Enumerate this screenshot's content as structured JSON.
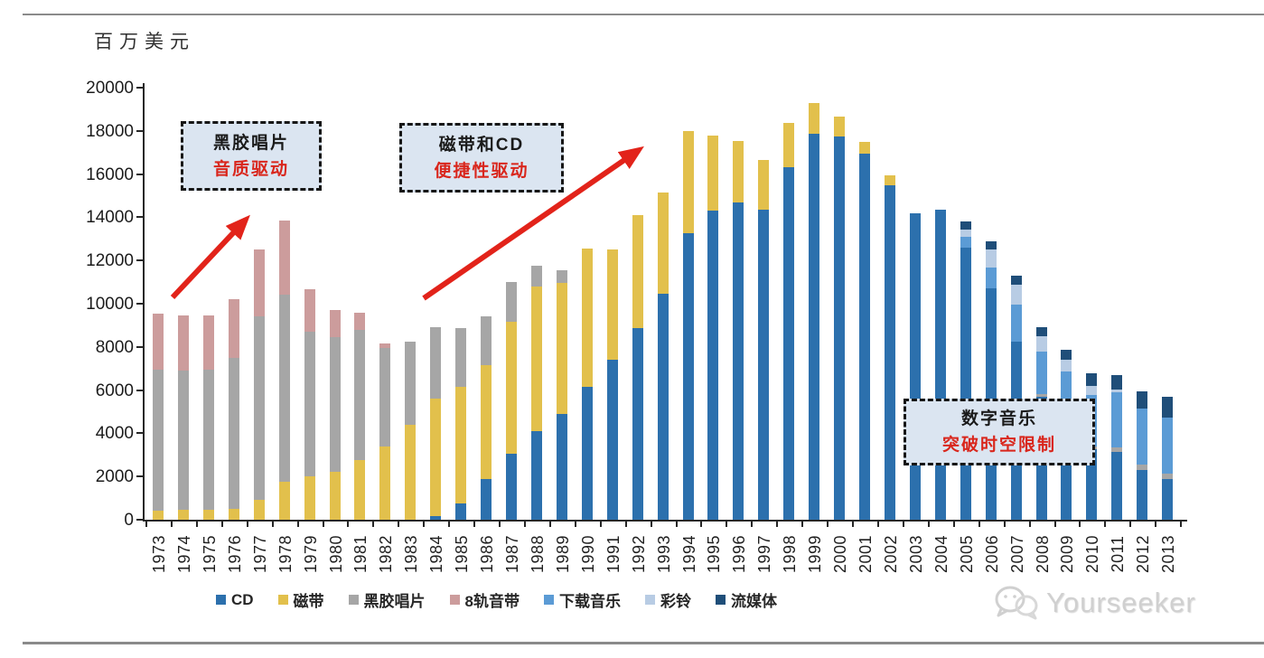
{
  "axis_title": "百万美元",
  "y_axis": {
    "min": 0,
    "max": 20000,
    "step": 2000
  },
  "chart_data": {
    "type": "bar",
    "subtype": "stacked",
    "unit": "百万美元",
    "ylim": [
      0,
      20000
    ],
    "grid": false,
    "legend_position": "bottom",
    "x": [
      "1973",
      "1974",
      "1975",
      "1976",
      "1977",
      "1978",
      "1979",
      "1980",
      "1981",
      "1982",
      "1983",
      "1984",
      "1985",
      "1986",
      "1987",
      "1988",
      "1989",
      "1990",
      "1991",
      "1992",
      "1993",
      "1994",
      "1995",
      "1996",
      "1997",
      "1998",
      "1999",
      "2000",
      "2001",
      "2002",
      "2003",
      "2004",
      "2005",
      "2006",
      "2007",
      "2008",
      "2009",
      "2010",
      "2011",
      "2012",
      "2013"
    ],
    "series": [
      {
        "name": "CD",
        "color": "#2c70ad",
        "values": [
          0,
          0,
          0,
          0,
          0,
          0,
          0,
          0,
          0,
          0,
          0,
          150,
          750,
          1870,
          3050,
          4100,
          4900,
          6150,
          7400,
          8850,
          10450,
          13250,
          14300,
          14700,
          14350,
          16300,
          17850,
          17750,
          16950,
          15500,
          14200,
          14350,
          12600,
          10700,
          8250,
          5700,
          4850,
          3250,
          3150,
          2300,
          1900
        ]
      },
      {
        "name": "磁带",
        "color": "#e2c04c",
        "values": [
          400,
          450,
          450,
          500,
          900,
          1750,
          2000,
          2200,
          2750,
          3400,
          4400,
          5450,
          5400,
          5300,
          6100,
          6700,
          6050,
          6400,
          5100,
          5250,
          4700,
          4750,
          3500,
          2850,
          2300,
          2050,
          1450,
          900,
          550,
          450,
          0,
          0,
          0,
          0,
          0,
          0,
          0,
          0,
          0,
          0,
          0
        ]
      },
      {
        "name": "黑胶唱片",
        "color": "#a6a6a6",
        "values": [
          6550,
          6450,
          6500,
          7000,
          8500,
          8650,
          6700,
          6250,
          6050,
          4550,
          3850,
          3300,
          2700,
          2250,
          1850,
          950,
          600,
          0,
          0,
          0,
          0,
          0,
          0,
          0,
          0,
          0,
          0,
          0,
          0,
          0,
          0,
          0,
          0,
          0,
          0,
          100,
          100,
          130,
          180,
          250,
          250
        ]
      },
      {
        "name": "8轨音带",
        "color": "#cc9c9c",
        "values": [
          2600,
          2550,
          2500,
          2700,
          3100,
          3450,
          1950,
          1250,
          800,
          200,
          0,
          0,
          0,
          0,
          0,
          0,
          0,
          0,
          0,
          0,
          0,
          0,
          0,
          0,
          0,
          0,
          0,
          0,
          0,
          0,
          0,
          0,
          0,
          0,
          0,
          0,
          0,
          0,
          0,
          0,
          0
        ]
      },
      {
        "name": "下载音乐",
        "color": "#5b9bd5",
        "values": [
          0,
          0,
          0,
          0,
          0,
          0,
          0,
          0,
          0,
          0,
          0,
          0,
          0,
          0,
          0,
          0,
          0,
          0,
          0,
          0,
          0,
          0,
          0,
          0,
          0,
          0,
          0,
          0,
          0,
          0,
          0,
          0,
          500,
          980,
          1700,
          2000,
          1900,
          2400,
          2550,
          2600,
          2580
        ]
      },
      {
        "name": "彩铃",
        "color": "#b8cce4",
        "values": [
          0,
          0,
          0,
          0,
          0,
          0,
          0,
          0,
          0,
          0,
          0,
          0,
          0,
          0,
          0,
          0,
          0,
          0,
          0,
          0,
          0,
          0,
          0,
          0,
          0,
          0,
          0,
          0,
          0,
          0,
          0,
          0,
          350,
          810,
          930,
          700,
          550,
          400,
          130,
          0,
          0
        ]
      },
      {
        "name": "流媒体",
        "color": "#1f4e79",
        "values": [
          0,
          0,
          0,
          0,
          0,
          0,
          0,
          0,
          0,
          0,
          0,
          0,
          0,
          0,
          0,
          0,
          0,
          0,
          0,
          0,
          0,
          0,
          0,
          0,
          0,
          0,
          0,
          0,
          0,
          0,
          0,
          0,
          370,
          380,
          420,
          430,
          450,
          580,
          670,
          780,
          960
        ]
      }
    ],
    "annotations": [
      {
        "line1": "黑胶唱片",
        "line2": "音质驱动"
      },
      {
        "line1": "磁带和CD",
        "line2": "便捷性驱动"
      },
      {
        "line1": "数字音乐",
        "line2": "突破时空限制"
      }
    ]
  },
  "watermark": {
    "text": "Yourseeker",
    "icon": "wechat"
  },
  "colors": {
    "accent_red": "#e2231a",
    "callout_bg": "#dbe5f1",
    "axis": "#262626",
    "watermark_gray": "#d0d0d0"
  }
}
